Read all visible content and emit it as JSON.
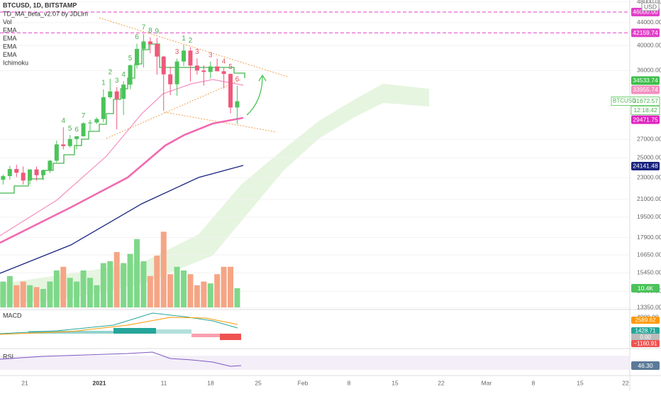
{
  "header": {
    "symbol": "BTCUSD, 1D, BITSTAMP",
    "indicators": [
      "TD_MA_beta_v2.07 by JDLim",
      "Vol",
      "EMA",
      "EMA",
      "EMA",
      "EMA",
      "Ichimoku"
    ]
  },
  "price_axis": {
    "currency": "USD",
    "ticks": [
      {
        "value": 48000,
        "label": "48000.00"
      },
      {
        "value": 44000,
        "label": "44000.00"
      },
      {
        "value": 40000,
        "label": "40000.00"
      },
      {
        "value": 36000,
        "label": "36000.00"
      },
      {
        "value": 27000,
        "label": "27000.00"
      },
      {
        "value": 25000,
        "label": "25000.00"
      },
      {
        "value": 23000,
        "label": "23000.00"
      },
      {
        "value": 21000,
        "label": "21000.00"
      },
      {
        "value": 19500,
        "label": "19500.00"
      },
      {
        "value": 17900,
        "label": "17900.00"
      },
      {
        "value": 16650,
        "label": "16650.00"
      },
      {
        "value": 15450,
        "label": "15450.00"
      },
      {
        "value": 14300,
        "label": "14300.00"
      },
      {
        "value": 13350,
        "label": "13350.00"
      }
    ]
  },
  "badges": {
    "line_top": "46000.00",
    "resistance": "42159.74",
    "td_line": "34533.74",
    "ema_fast": "33955.74",
    "symbol": "BTCUSD",
    "last": "31672.57",
    "countdown": "12:18:42",
    "ema_slow": "29471.75",
    "ema_long": "24141.48",
    "volume": "10.4K"
  },
  "macd": {
    "title": "MACD",
    "scale": "4000.00",
    "badges": [
      "2589.62",
      "1428.71",
      "0.00",
      "−1160.91"
    ]
  },
  "rsi": {
    "title": "RSI",
    "badge": "46.30"
  },
  "time_axis": [
    "21",
    "2021",
    "11",
    "18",
    "25",
    "Feb",
    "8",
    "15",
    "22",
    "Mar",
    "8",
    "15",
    "22"
  ],
  "candles": [
    [
      22800,
      23300,
      22350,
      23150
    ],
    [
      23150,
      24170,
      22800,
      23850
    ],
    [
      23850,
      24280,
      23060,
      23480
    ],
    [
      23480,
      24100,
      22350,
      22730
    ],
    [
      22730,
      23800,
      22350,
      23810
    ],
    [
      23810,
      24100,
      22700,
      23240
    ],
    [
      23240,
      23780,
      22750,
      23720
    ],
    [
      23720,
      24790,
      23450,
      24690
    ],
    [
      24690,
      26870,
      24500,
      26440
    ],
    [
      26440,
      28400,
      25880,
      26250
    ],
    [
      26250,
      27500,
      26100,
      27040
    ],
    [
      27040,
      27370,
      25900,
      27350
    ],
    [
      27350,
      28990,
      27320,
      28880
    ],
    [
      28880,
      29300,
      28000,
      28970
    ],
    [
      28970,
      29600,
      28800,
      29400
    ],
    [
      29400,
      33300,
      29000,
      32200
    ],
    [
      32200,
      34800,
      32000,
      33000
    ],
    [
      33000,
      33600,
      28130,
      31990
    ],
    [
      31990,
      34450,
      29900,
      33950
    ],
    [
      33950,
      36900,
      33300,
      36820
    ],
    [
      36820,
      40300,
      36300,
      39430
    ],
    [
      39430,
      41950,
      36500,
      40670
    ],
    [
      40670,
      41400,
      38700,
      40240
    ],
    [
      40240,
      41300,
      35400,
      38180
    ],
    [
      38180,
      38300,
      30400,
      35440
    ],
    [
      35440,
      36600,
      32500,
      34000
    ],
    [
      34000,
      37850,
      32400,
      37400
    ],
    [
      37400,
      40100,
      36700,
      39150
    ],
    [
      39150,
      39700,
      34400,
      36770
    ],
    [
      36770,
      37900,
      35400,
      36020
    ],
    [
      36020,
      36800,
      33800,
      35800
    ],
    [
      35800,
      37400,
      34800,
      36630
    ],
    [
      36630,
      37850,
      35900,
      35900
    ],
    [
      35900,
      36400,
      33400,
      35500
    ],
    [
      35500,
      35600,
      30100,
      30850
    ],
    [
      30850,
      33800,
      28800,
      31672.57
    ]
  ],
  "volume": [
    14,
    17,
    12,
    14,
    12,
    11,
    10,
    14,
    20,
    22,
    16,
    14,
    20,
    16,
    12,
    24,
    25,
    30,
    24,
    29,
    37,
    25,
    17,
    28,
    41,
    18,
    22,
    20,
    18,
    12,
    14,
    13,
    18,
    22,
    22,
    10.4
  ],
  "td_counts": [
    {
      "candle": 9,
      "label": "4",
      "side": "buy"
    },
    {
      "candle": 10,
      "label": "5",
      "side": "buy"
    },
    {
      "candle": 11,
      "label": "6",
      "side": "buy"
    },
    {
      "candle": 12,
      "label": "7",
      "side": "buy"
    },
    {
      "candle": 15,
      "label": "1",
      "side": "buy"
    },
    {
      "candle": 16,
      "label": "2",
      "side": "buy"
    },
    {
      "candle": 17,
      "label": "3",
      "side": "buy"
    },
    {
      "candle": 18,
      "label": "4",
      "side": "buy"
    },
    {
      "candle": 19,
      "label": "5",
      "side": "buy"
    },
    {
      "candle": 20,
      "label": "6",
      "side": "buy"
    },
    {
      "candle": 21,
      "label": "7",
      "side": "buy"
    },
    {
      "candle": 22,
      "label": "8",
      "side": "buy"
    },
    {
      "candle": 23,
      "label": "9",
      "side": "buy"
    },
    {
      "candle": 27,
      "label": "1",
      "side": "buy"
    },
    {
      "candle": 28,
      "label": "2",
      "side": "buy"
    },
    {
      "candle": 26,
      "label": "3",
      "side": "sell"
    },
    {
      "candle": 29,
      "label": "3",
      "side": "sell"
    },
    {
      "candle": 31,
      "label": "3",
      "side": "sell"
    },
    {
      "candle": 33,
      "label": "4",
      "side": "sell"
    },
    {
      "candle": 34,
      "label": "5",
      "side": "sell"
    },
    {
      "candle": 35,
      "label": "6",
      "side": "sell"
    }
  ]
}
